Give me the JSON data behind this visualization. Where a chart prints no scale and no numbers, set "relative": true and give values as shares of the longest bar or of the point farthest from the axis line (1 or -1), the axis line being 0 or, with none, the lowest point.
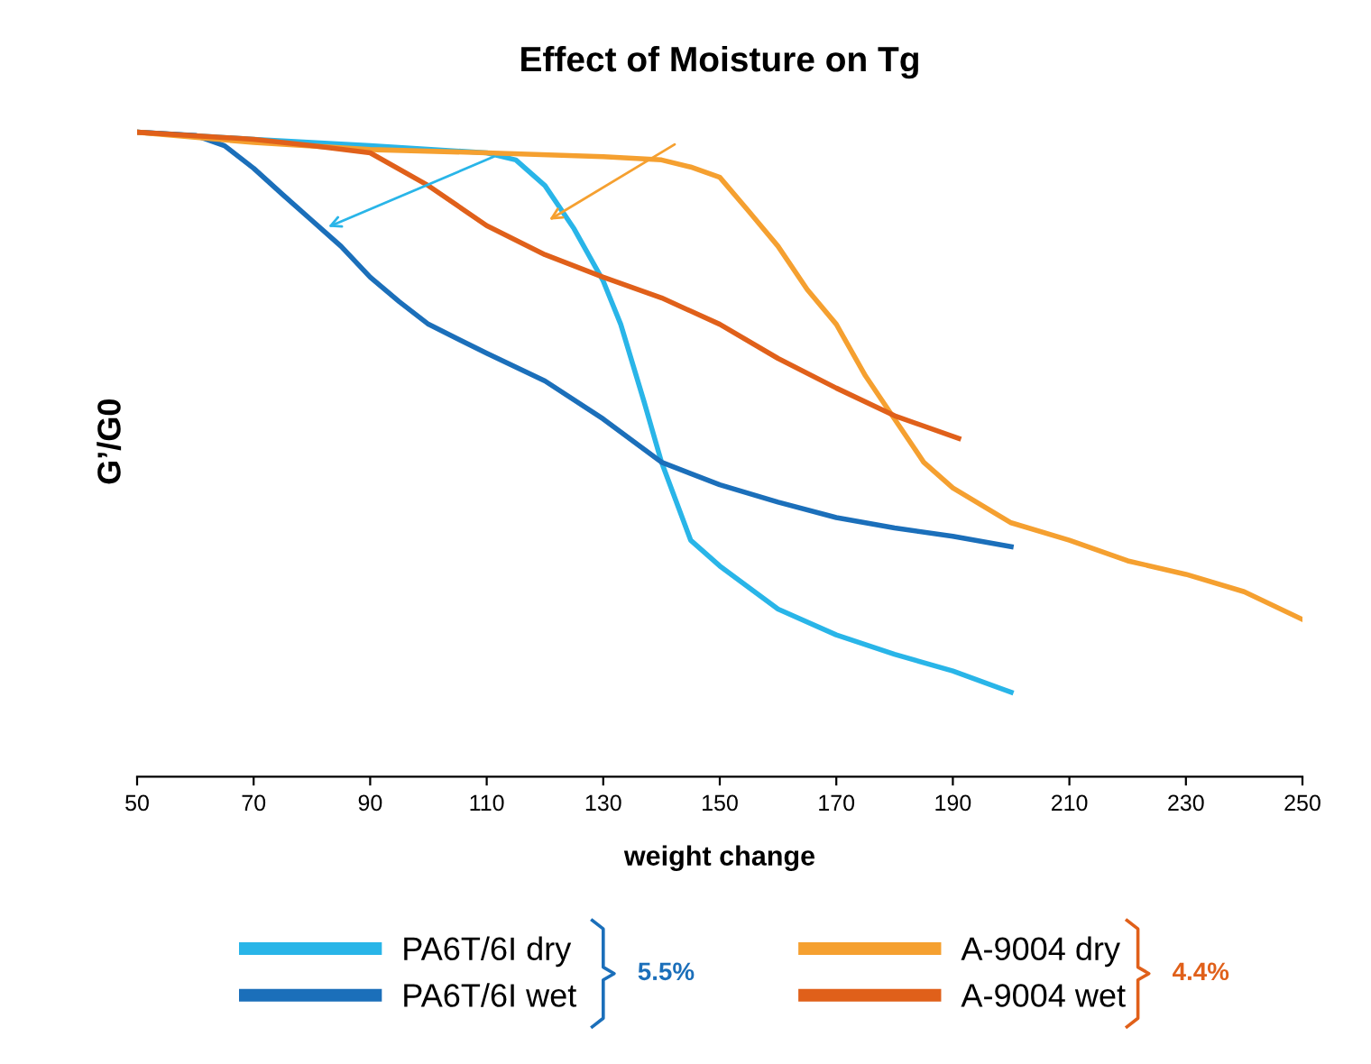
{
  "chart_data": {
    "type": "line",
    "title": "Effect of Moisture on Tg",
    "xlabel": "weight change",
    "ylabel": "G’/G0",
    "relative": true,
    "xlim": [
      50,
      250
    ],
    "xticks": [
      50,
      70,
      90,
      110,
      130,
      150,
      170,
      190,
      210,
      230,
      250
    ],
    "legend": "bottom",
    "grid": false,
    "marker": "none",
    "line_style": "solid",
    "annotations": [
      "5.5%",
      "4.4%"
    ],
    "series": [
      {
        "name": "PA6T/6I dry",
        "color": "#29b5e8",
        "x": [
          50,
          70,
          90,
          110,
          115,
          120,
          125,
          130,
          133,
          137,
          140,
          145,
          150,
          160,
          170,
          180,
          190,
          200
        ],
        "values": [
          1.0,
          0.989,
          0.979,
          0.968,
          0.957,
          0.917,
          0.85,
          0.769,
          0.702,
          0.582,
          0.488,
          0.367,
          0.327,
          0.26,
          0.22,
          0.19,
          0.164,
          0.131
        ]
      },
      {
        "name": "PA6T/6I wet",
        "color": "#1b6fba",
        "x": [
          50,
          60,
          65,
          70,
          75,
          80,
          85,
          90,
          95,
          100,
          110,
          120,
          130,
          140,
          150,
          160,
          170,
          180,
          190,
          200
        ],
        "values": [
          1.0,
          0.995,
          0.979,
          0.944,
          0.903,
          0.863,
          0.823,
          0.775,
          0.737,
          0.702,
          0.657,
          0.614,
          0.555,
          0.488,
          0.453,
          0.426,
          0.402,
          0.386,
          0.373,
          0.357
        ]
      },
      {
        "name": "A-9004 dry",
        "color": "#f5a030",
        "x": [
          50,
          70,
          90,
          110,
          130,
          140,
          145,
          150,
          155,
          160,
          165,
          170,
          175,
          180,
          185,
          190,
          200,
          210,
          220,
          230,
          240,
          250
        ],
        "values": [
          1.0,
          0.984,
          0.973,
          0.968,
          0.962,
          0.957,
          0.946,
          0.93,
          0.877,
          0.823,
          0.756,
          0.702,
          0.622,
          0.555,
          0.488,
          0.448,
          0.394,
          0.367,
          0.335,
          0.314,
          0.287,
          0.244
        ]
      },
      {
        "name": "A-9004 wet",
        "color": "#e0601a",
        "x": [
          50,
          70,
          80,
          90,
          100,
          110,
          120,
          130,
          140,
          150,
          160,
          170,
          180,
          191
        ],
        "values": [
          1.0,
          0.989,
          0.979,
          0.968,
          0.917,
          0.855,
          0.81,
          0.775,
          0.743,
          0.702,
          0.649,
          0.603,
          0.56,
          0.525
        ]
      }
    ]
  }
}
